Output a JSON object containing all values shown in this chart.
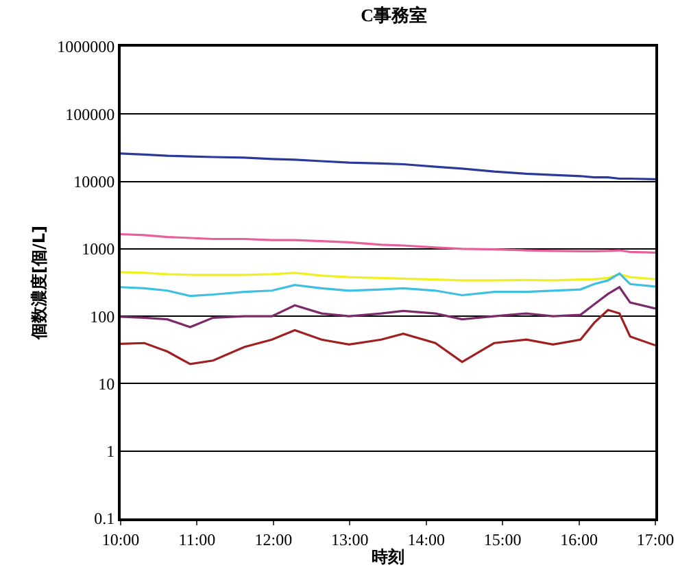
{
  "chart_data": {
    "type": "line",
    "title": "C事務室",
    "xlabel": "時刻",
    "ylabel": "個数濃度[個/L]",
    "x": [
      10,
      10.31,
      10.61,
      10.91,
      11.21,
      11.62,
      11.98,
      12.28,
      12.63,
      12.99,
      13.41,
      13.7,
      14.12,
      14.47,
      14.89,
      15.31,
      15.66,
      16.02,
      16.2,
      16.38,
      16.53,
      16.67,
      17.0
    ],
    "series": [
      {
        "color": "#2b3a9a",
        "values": [
          26000,
          25000,
          24000,
          23500,
          23000,
          22500,
          21500,
          21000,
          20000,
          19000,
          18500,
          18000,
          16500,
          15500,
          14000,
          13000,
          12500,
          12000,
          11500,
          11500,
          11000,
          11000,
          10800
        ]
      },
      {
        "color": "#e8609a",
        "values": [
          1650,
          1600,
          1500,
          1450,
          1400,
          1400,
          1350,
          1350,
          1300,
          1250,
          1150,
          1120,
          1050,
          1000,
          980,
          950,
          930,
          920,
          920,
          930,
          950,
          900,
          880
        ]
      },
      {
        "color": "#f0f020",
        "values": [
          450,
          440,
          420,
          410,
          410,
          410,
          420,
          440,
          400,
          380,
          370,
          360,
          350,
          340,
          340,
          345,
          340,
          350,
          355,
          370,
          420,
          380,
          355
        ]
      },
      {
        "color": "#40c0e0",
        "values": [
          270,
          260,
          240,
          200,
          210,
          230,
          240,
          290,
          260,
          240,
          250,
          260,
          240,
          205,
          230,
          230,
          240,
          250,
          300,
          340,
          430,
          300,
          275
        ]
      },
      {
        "color": "#7b2a6a",
        "values": [
          98,
          95,
          90,
          69,
          95,
          100,
          100,
          145,
          110,
          100,
          110,
          120,
          110,
          90,
          100,
          110,
          100,
          105,
          150,
          214,
          270,
          160,
          130
        ]
      },
      {
        "color": "#a02020",
        "values": [
          39,
          40,
          30,
          19.5,
          22,
          35,
          45,
          62,
          45,
          38,
          45,
          55,
          40,
          21,
          40,
          45,
          38,
          45,
          80,
          124,
          110,
          50,
          37
        ]
      }
    ],
    "log": "y",
    "ylim": [
      0.1,
      1000000
    ],
    "yticks": [
      0.1,
      1,
      10,
      100,
      1000,
      10000,
      100000,
      1000000
    ],
    "xlim": [
      10,
      17
    ],
    "xticks": [
      {
        "value": 10,
        "label": "10:00"
      },
      {
        "value": 11,
        "label": "11:00"
      },
      {
        "value": 12,
        "label": "12:00"
      },
      {
        "value": 13,
        "label": "13:00"
      },
      {
        "value": 14,
        "label": "14:00"
      },
      {
        "value": 15,
        "label": "15:00"
      },
      {
        "value": 16,
        "label": "16:00"
      },
      {
        "value": 17,
        "label": "17:00"
      }
    ],
    "grid": "y",
    "marker": "none",
    "line_style": "solid"
  }
}
